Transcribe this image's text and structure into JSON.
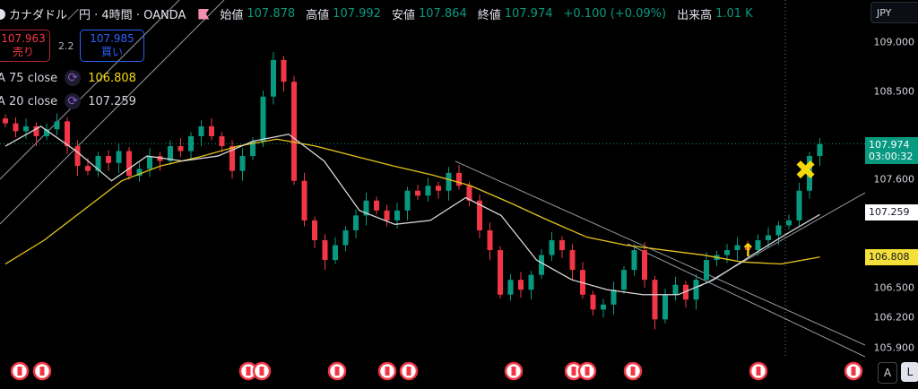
{
  "header": {
    "symbol": "カナダドル／円 · 4時間 · OANDA",
    "open_label": "始値",
    "open": "107.878",
    "high_label": "高値",
    "high": "107.992",
    "low_label": "安値",
    "low": "107.864",
    "close_label": "終値",
    "close": "107.974",
    "change": "+0.100 (+0.09%)",
    "volume_label": "出来高",
    "volume": "1.01 K"
  },
  "trade": {
    "sell_price": "107.963",
    "sell_label": "売り",
    "spread": "2.2",
    "buy_price": "107.985",
    "buy_label": "買い"
  },
  "indicators": [
    {
      "label": "A 75 close",
      "value": "106.808",
      "color": "#f5d90a",
      "icon": "refresh-icon"
    },
    {
      "label": "A 20 close",
      "value": "107.259",
      "color": "#e0e3eb",
      "icon": "refresh-icon"
    }
  ],
  "axis": {
    "currency": "JPY",
    "ticks": [
      "109.000",
      "108.500",
      "107.600",
      "106.500",
      "106.200",
      "105.900"
    ],
    "last_price": "107.974",
    "countdown": "03:00:32",
    "ma20_tag": "107.259",
    "ma75_tag": "106.808",
    "auto_label": "A",
    "log_label": "L"
  },
  "colors": {
    "up": "#089981",
    "down": "#f23645",
    "ma75": "#e6c41c",
    "ma20": "#d8d8d8",
    "accent": "#2962ff"
  },
  "chart_data": {
    "type": "candlestick",
    "ylim": [
      105.75,
      109.1
    ],
    "closes": [
      108.18,
      108.1,
      108.15,
      108.05,
      108.12,
      108.2,
      107.95,
      107.75,
      107.7,
      107.85,
      107.78,
      107.9,
      107.65,
      107.72,
      107.85,
      107.8,
      107.95,
      107.9,
      108.05,
      108.15,
      108.05,
      107.95,
      107.7,
      107.85,
      108.0,
      108.45,
      108.82,
      108.6,
      107.6,
      107.2,
      107.0,
      106.8,
      106.95,
      107.1,
      107.25,
      107.4,
      107.3,
      107.2,
      107.3,
      107.5,
      107.45,
      107.55,
      107.5,
      107.68,
      107.55,
      107.4,
      107.1,
      106.9,
      106.45,
      106.6,
      106.5,
      106.65,
      106.85,
      107.0,
      106.9,
      106.7,
      106.45,
      106.3,
      106.35,
      106.5,
      106.7,
      106.9,
      106.6,
      106.2,
      106.45,
      106.55,
      106.4,
      106.6,
      106.8,
      106.85,
      106.9,
      106.95,
      106.9,
      107.0,
      107.05,
      107.15,
      107.2,
      107.5,
      107.85,
      107.97
    ],
    "ma75": [
      106.76,
      107.0,
      107.3,
      107.6,
      107.75,
      107.84,
      107.95,
      108.02,
      107.95,
      107.85,
      107.75,
      107.66,
      107.55,
      107.38,
      107.2,
      107.03,
      106.95,
      106.9,
      106.85,
      106.78,
      106.76,
      106.83
    ],
    "ma20": [
      107.95,
      108.15,
      107.9,
      107.6,
      107.85,
      107.8,
      107.85,
      108.0,
      108.07,
      107.8,
      107.3,
      107.16,
      107.2,
      107.43,
      107.25,
      106.8,
      106.6,
      106.5,
      106.45,
      106.45,
      106.6,
      106.83,
      107.05,
      107.26
    ]
  }
}
